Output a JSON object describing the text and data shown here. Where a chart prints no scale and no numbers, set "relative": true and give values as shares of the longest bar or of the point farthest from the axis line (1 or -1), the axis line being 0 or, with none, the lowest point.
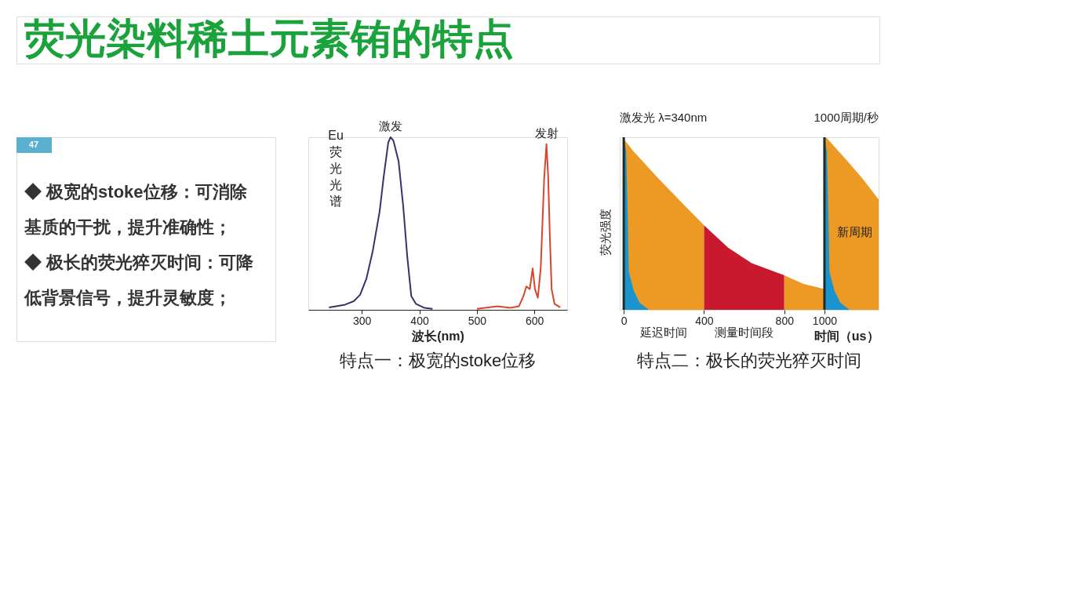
{
  "chart_data": [
    {
      "type": "other",
      "title": "荧光染料稀土元素铕的特点",
      "annotations": [
        "47",
        "◆ 极宽的stoke位移：可消除基质的干扰，提升准确性；",
        "◆ 极长的荧光猝灭时间：可降低背景信号，提升灵敏度；"
      ]
    },
    {
      "type": "line",
      "title": "特点一：极宽的stoke位移",
      "xlabel": "波长(nm)",
      "ylabel": "Eu荧光光谱",
      "relative": true,
      "xlim": [
        207,
        657
      ],
      "xticks": [
        300,
        400,
        500,
        600
      ],
      "grid": false,
      "marker": "none",
      "line_style": "solid",
      "series": [
        {
          "color": "#3d2f6b",
          "x": [
            243,
            271,
            286,
            297,
            308,
            319,
            331,
            338,
            346,
            350,
            355,
            364,
            372,
            379,
            386,
            394,
            409,
            423
          ],
          "values": [
            0.014,
            0.03,
            0.05,
            0.087,
            0.18,
            0.34,
            0.57,
            0.77,
            0.97,
            1.0,
            0.98,
            0.86,
            0.6,
            0.31,
            0.08,
            0.035,
            0.011,
            0.006
          ]
        },
        {
          "color": "#d9452b",
          "x": [
            500,
            536,
            558,
            573,
            581,
            586,
            592,
            597,
            601,
            606,
            611,
            617,
            621,
            624,
            627,
            630,
            635,
            645
          ],
          "values": [
            0.006,
            0.02,
            0.011,
            0.02,
            0.08,
            0.135,
            0.12,
            0.24,
            0.12,
            0.07,
            0.24,
            0.76,
            0.96,
            0.77,
            0.41,
            0.12,
            0.035,
            0.014
          ]
        }
      ],
      "annotations": [
        {
          "text": "激发",
          "x": 350,
          "y": 1.0
        },
        {
          "text": "发射",
          "x": 621,
          "y": 0.96
        }
      ]
    },
    {
      "type": "area",
      "title": "特点二：极长的荧光猝灭时间",
      "xlabel": "时间（us）",
      "ylabel": "荧光强度",
      "relative": true,
      "xlim": [
        -20,
        1270
      ],
      "xticks": [
        0,
        400,
        800,
        1000
      ],
      "grid": false,
      "series": [
        {
          "color": "#ec9a23",
          "x": [
            0,
            47,
            165,
            282,
            400
          ],
          "values": [
            0.99,
            0.92,
            0.77,
            0.63,
            0.49
          ]
        },
        {
          "color": "#c8192e",
          "x": [
            400,
            520,
            637,
            800
          ],
          "values": [
            0.49,
            0.36,
            0.27,
            0.2
          ]
        },
        {
          "color": "#ec9a23",
          "x": [
            800,
            896,
            1000
          ],
          "values": [
            0.2,
            0.15,
            0.12
          ]
        },
        {
          "color": "#ec9a23",
          "x": [
            1000,
            1008,
            1108,
            1190,
            1270
          ],
          "values": [
            0.99,
            1.0,
            0.87,
            0.76,
            0.64
          ]
        },
        {
          "color": "#1a94cc",
          "x": [
            0,
            12,
            20,
            25,
            50,
            80,
            125
          ],
          "values": [
            0.99,
            0.92,
            0.54,
            0.22,
            0.11,
            0.04,
            0.0
          ]
        },
        {
          "color": "#1a94cc",
          "x": [
            1000,
            1012,
            1020,
            1025,
            1050,
            1080,
            1125
          ],
          "values": [
            0.99,
            0.92,
            0.54,
            0.22,
            0.11,
            0.04,
            0.0
          ]
        }
      ],
      "ref_lines": [
        {
          "axis": "x",
          "value": 0,
          "color": "#1f2a2a"
        },
        {
          "axis": "x",
          "value": 1000,
          "color": "#1f2a2a"
        }
      ],
      "annotations": [
        "激发光 λ=340nm",
        "1000周期/秒",
        "新周期",
        {
          "text": "延迟时间",
          "x": 200,
          "y": 0
        },
        {
          "text": "测量时间段",
          "x": 600,
          "y": 0
        }
      ]
    }
  ]
}
